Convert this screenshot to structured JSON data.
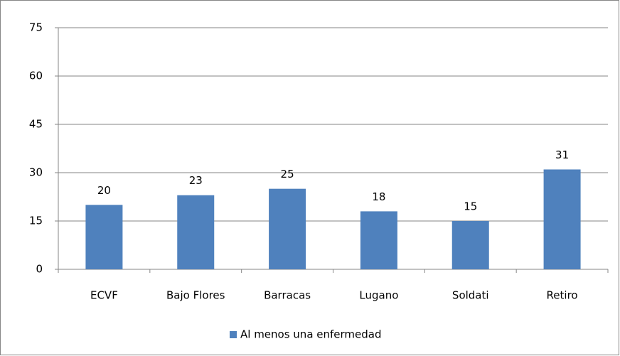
{
  "chart_data": {
    "type": "bar",
    "categories": [
      "ECVF",
      "Bajo Flores",
      "Barracas",
      "Lugano",
      "Soldati",
      "Retiro"
    ],
    "series": [
      {
        "name": "Al menos una enfermedad",
        "color": "#4f81bd",
        "values": [
          20,
          23,
          25,
          18,
          15,
          31
        ]
      }
    ],
    "ylim": [
      0,
      75
    ],
    "yticks": [
      0,
      15,
      30,
      45,
      60,
      75
    ],
    "grid": true,
    "legend": "bottom"
  }
}
